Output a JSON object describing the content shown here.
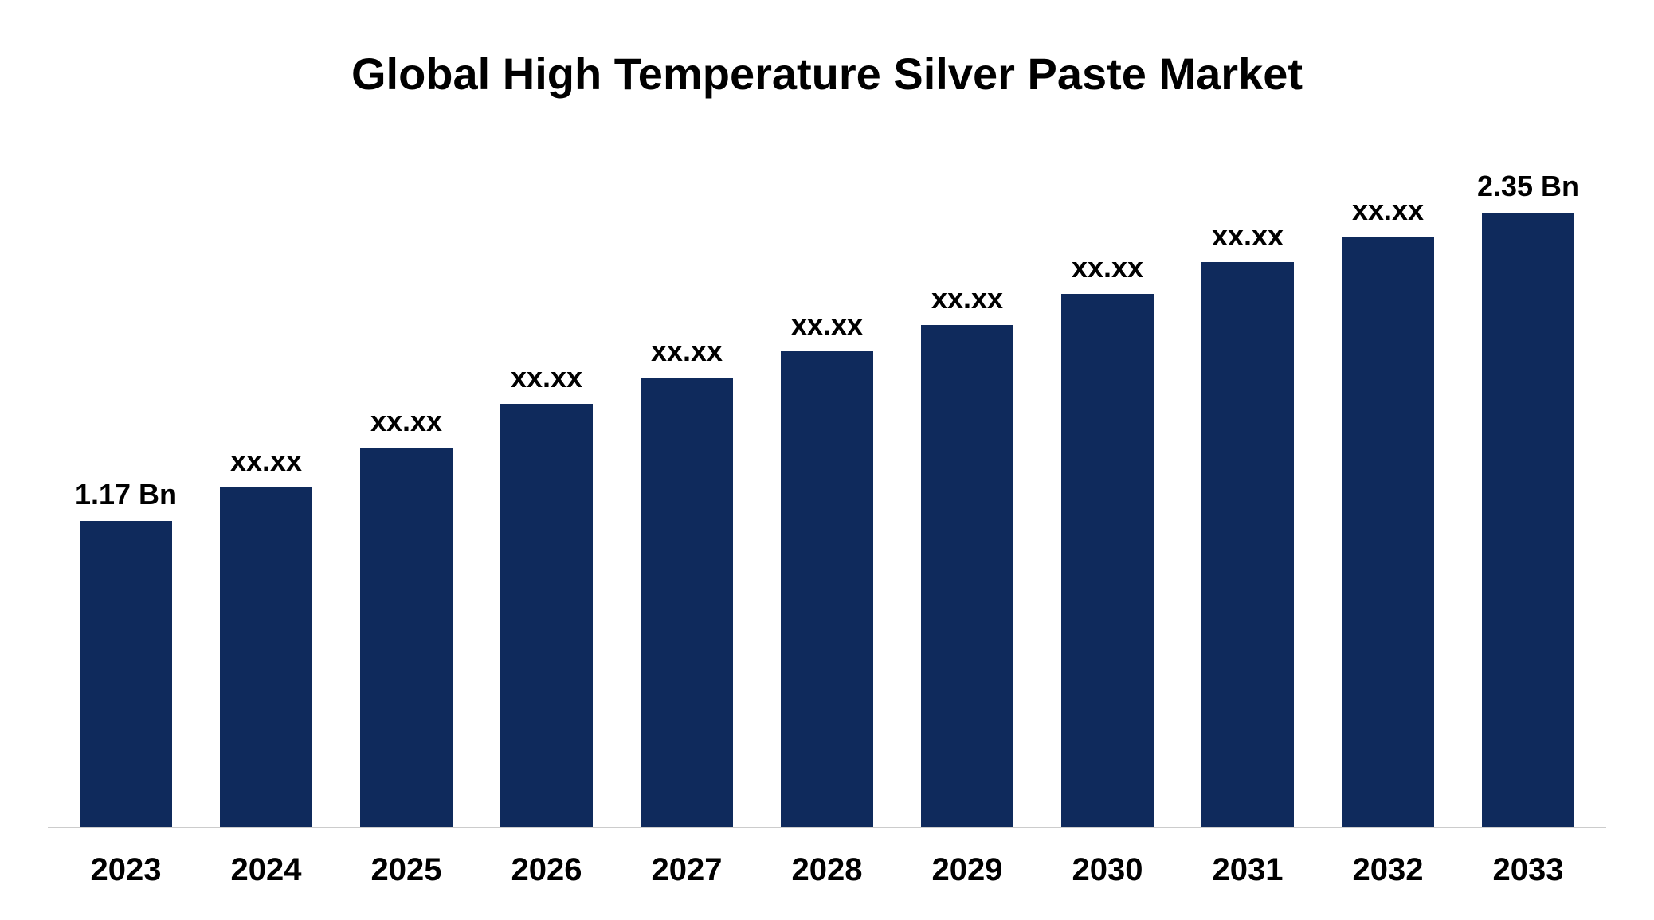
{
  "chart": {
    "type": "bar",
    "title": "Global High Temperature Silver Paste Market",
    "title_fontsize": 56,
    "title_color": "#000000",
    "background_color": "#ffffff",
    "axis_line_color": "#cccccc",
    "bar_color": "#0f2a5c",
    "bar_width_pct": 72,
    "label_fontsize": 36,
    "label_color": "#000000",
    "xtick_fontsize": 40,
    "xtick_color": "#000000",
    "y_max": 2.6,
    "categories": [
      "2023",
      "2024",
      "2025",
      "2026",
      "2027",
      "2028",
      "2029",
      "2030",
      "2031",
      "2032",
      "2033"
    ],
    "values": [
      1.17,
      1.3,
      1.45,
      1.62,
      1.72,
      1.82,
      1.92,
      2.04,
      2.16,
      2.26,
      2.35
    ],
    "value_labels": [
      "1.17 Bn",
      "xx.xx",
      "xx.xx",
      "xx.xx",
      "xx.xx",
      "xx.xx",
      "xx.xx",
      "xx.xx",
      "xx.xx",
      "xx.xx",
      "2.35 Bn"
    ]
  }
}
